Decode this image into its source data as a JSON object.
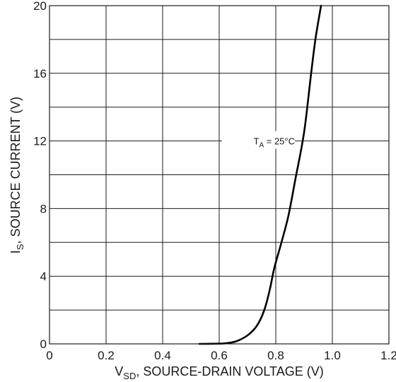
{
  "chart_data": {
    "type": "line",
    "xlabel": {
      "main": "V",
      "sub": "SD",
      "rest": ", SOURCE-DRAIN VOLTAGE (V)"
    },
    "ylabel": {
      "main": "I",
      "sub": "S",
      "rest": ", SOURCE CURRENT (V)"
    },
    "xlim": [
      0,
      1.2
    ],
    "ylim": [
      0,
      20
    ],
    "x_ticks": [
      0,
      0.2,
      0.4,
      0.6,
      0.8,
      1.0,
      1.2
    ],
    "x_tick_labels": [
      "0",
      "0.2",
      "0.4",
      "0.6",
      "0.8",
      "1.0",
      "1.2"
    ],
    "y_ticks": [
      0,
      4,
      8,
      12,
      16,
      20
    ],
    "y_tick_labels": [
      "0",
      "4",
      "8",
      "12",
      "16",
      "20"
    ],
    "grid": true,
    "annotation": {
      "main": "T",
      "sub": "A",
      "rest": " = 25°C",
      "x": 0.9,
      "y": 12
    },
    "series": [
      {
        "x": [
          0.53,
          0.58,
          0.62,
          0.66,
          0.7,
          0.73,
          0.75,
          0.765,
          0.78,
          0.795,
          0.82,
          0.845,
          0.87,
          0.9,
          0.925,
          0.94,
          0.96
        ],
        "y": [
          0.0,
          0.01,
          0.03,
          0.15,
          0.5,
          1.0,
          1.6,
          2.3,
          3.3,
          4.5,
          6.0,
          7.6,
          9.8,
          12.5,
          16.0,
          18.0,
          20.0
        ]
      }
    ]
  }
}
